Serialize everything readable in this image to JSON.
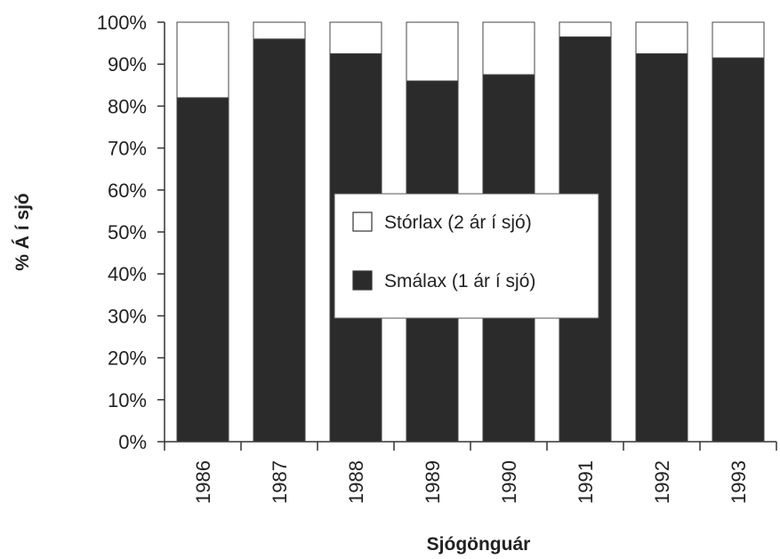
{
  "chart_data": {
    "type": "bar",
    "stacked": true,
    "categories": [
      "1986",
      "1987",
      "1988",
      "1989",
      "1990",
      "1991",
      "1992",
      "1993"
    ],
    "series": [
      {
        "name": "Smálax (1 ár í sjó)",
        "color": "#2b2b2b",
        "values": [
          82,
          96,
          92.5,
          86,
          87.5,
          96.5,
          92.5,
          91.5
        ]
      },
      {
        "name": "Stórlax (2 ár í sjó)",
        "color": "#ffffff",
        "values": [
          18,
          4,
          7.5,
          14,
          12.5,
          3.5,
          7.5,
          8.5
        ]
      }
    ],
    "ylim": [
      0,
      100
    ],
    "yticks": [
      "0%",
      "10%",
      "20%",
      "30%",
      "40%",
      "50%",
      "60%",
      "70%",
      "80%",
      "90%",
      "100%"
    ],
    "ylabel": "% Á í sjó",
    "xlabel": "Sjógönguár",
    "legend_position": "center",
    "grid": false
  }
}
